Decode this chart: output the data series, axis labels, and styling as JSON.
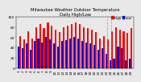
{
  "title": "Milwaukee Weather Outdoor Temperature",
  "subtitle": "Daily High/Low",
  "title_fontsize": 3.8,
  "bar_width": 0.42,
  "highs": [
    62,
    55,
    72,
    58,
    80,
    85,
    78,
    88,
    82,
    75,
    70,
    80,
    82,
    85,
    88,
    85,
    80,
    78,
    75,
    70,
    58,
    62,
    55,
    72,
    80,
    75,
    72,
    68,
    78
  ],
  "lows": [
    42,
    38,
    48,
    35,
    52,
    58,
    50,
    60,
    55,
    48,
    42,
    52,
    54,
    58,
    60,
    58,
    52,
    50,
    48,
    45,
    35,
    38,
    28,
    15,
    18,
    42,
    38,
    15,
    18
  ],
  "high_color": "#ff0000",
  "low_color": "#0000cc",
  "bg_color": "#e8e8e8",
  "plot_bg": "#e8e8e8",
  "ylim": [
    0,
    100
  ],
  "yticks": [
    0,
    20,
    40,
    60,
    80,
    100
  ],
  "tick_fontsize": 3.2,
  "x_labels": [
    "1",
    "2",
    "3",
    "4",
    "5",
    "6",
    "7",
    "8",
    "9",
    "10",
    "11",
    "12",
    "13",
    "14",
    "15",
    "16",
    "17",
    "18",
    "19",
    "20",
    "21",
    "22",
    "23",
    "24",
    "25",
    "26",
    "27",
    "28",
    "29"
  ],
  "dashed_cols": [
    22,
    23
  ],
  "legend_high": "High",
  "legend_low": "Low",
  "legend_fontsize": 3.0
}
